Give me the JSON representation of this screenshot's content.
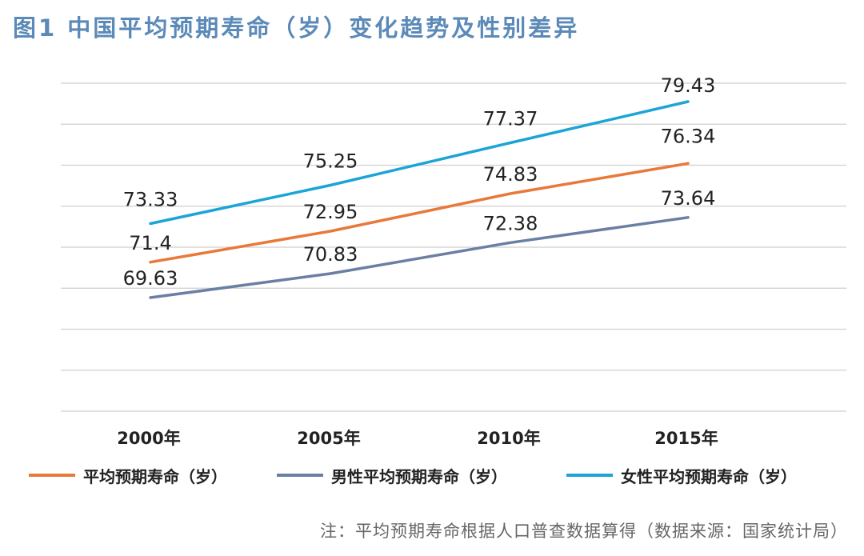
{
  "title": "图1 中国平均预期寿命（岁）变化趋势及性别差异",
  "note": "注：平均预期寿命根据人口普查数据算得（数据来源：国家统计局）",
  "chart_data": {
    "type": "line",
    "title": "图1 中国平均预期寿命（岁）变化趋势及性别差异",
    "categories": [
      "2000年",
      "2005年",
      "2010年",
      "2015年"
    ],
    "series": [
      {
        "name": "平均预期寿命（岁）",
        "color": "#e8793a",
        "values": [
          71.4,
          72.95,
          74.83,
          76.34
        ],
        "labels": [
          "71.4",
          "72.95",
          "74.83",
          "76.34"
        ]
      },
      {
        "name": "男性平均预期寿命（岁）",
        "color": "#6a7fa3",
        "values": [
          69.63,
          70.83,
          72.38,
          73.64
        ],
        "labels": [
          "69.63",
          "70.83",
          "72.38",
          "73.64"
        ]
      },
      {
        "name": "女性平均预期寿命（岁）",
        "color": "#1ba5d6",
        "values": [
          73.33,
          75.25,
          77.37,
          79.43
        ],
        "labels": [
          "73.33",
          "75.25",
          "77.37",
          "79.43"
        ]
      }
    ],
    "gridlines": 9,
    "axis_y_visible": false,
    "legend_position": "bottom"
  }
}
